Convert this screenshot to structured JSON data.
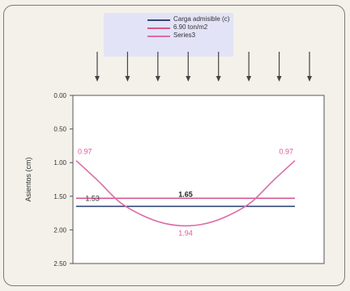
{
  "chart_data": {
    "type": "line",
    "ylabel": "Asientos (cm)",
    "ylim": [
      0,
      2.5
    ],
    "y_inverted": true,
    "yticks": [
      "0.00",
      "0.50",
      "1.00",
      "1.50",
      "2.00",
      "2.50"
    ],
    "legend_position": "top",
    "grid": false,
    "load_arrows": 8,
    "series": [
      {
        "name": "Carga admisible (c)",
        "color": "#33487a",
        "x": [
          0,
          1
        ],
        "values": [
          1.65,
          1.65
        ]
      },
      {
        "name": "6.90 ton/m2",
        "color": "#d4578f",
        "x": [
          0,
          1
        ],
        "values": [
          1.53,
          1.53
        ]
      },
      {
        "name": "Series3",
        "color": "#dc6ca6",
        "x": [
          0,
          0.1,
          0.2,
          0.3,
          0.4,
          0.5,
          0.6,
          0.7,
          0.8,
          0.9,
          1.0
        ],
        "values": [
          0.97,
          1.27,
          1.59,
          1.78,
          1.9,
          1.94,
          1.9,
          1.78,
          1.59,
          1.27,
          0.97
        ]
      }
    ],
    "annotations": [
      {
        "text": "0.97",
        "x": 0,
        "y": 0.97,
        "color": "#e0569a"
      },
      {
        "text": "0.97",
        "x": 1,
        "y": 0.97,
        "color": "#e0569a"
      },
      {
        "text": "1.53",
        "x": 0.02,
        "y": 1.53,
        "color": "#333333"
      },
      {
        "text": "1.65",
        "x": 0.5,
        "y": 1.53,
        "color": "#222222"
      },
      {
        "text": "1.94",
        "x": 0.5,
        "y": 1.94,
        "color": "#e0569a"
      }
    ]
  }
}
